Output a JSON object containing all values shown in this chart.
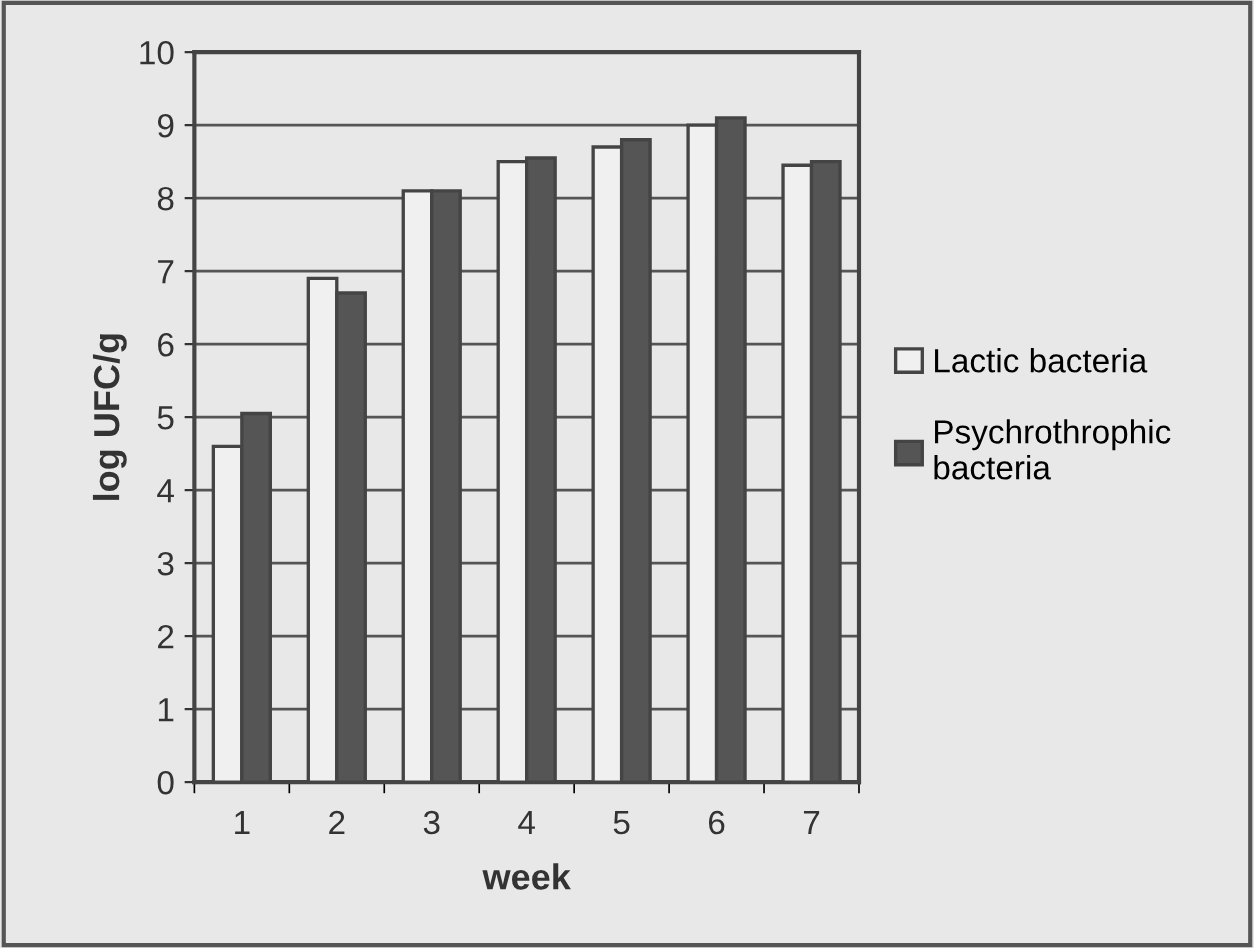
{
  "chart_data": {
    "type": "bar",
    "xlabel": "week",
    "ylabel": "log UFC/g",
    "categories": [
      "1",
      "2",
      "3",
      "4",
      "5",
      "6",
      "7"
    ],
    "series": [
      {
        "name": "Lactic bacteria",
        "color": "#f0f0f0",
        "values": [
          4.6,
          6.9,
          8.1,
          8.5,
          8.7,
          9.0,
          8.45
        ]
      },
      {
        "name": "Psychrothrophic bacteria",
        "color": "#555555",
        "values": [
          5.05,
          6.7,
          8.1,
          8.55,
          8.8,
          9.1,
          8.5
        ]
      }
    ],
    "ylim": [
      0,
      10
    ],
    "yticks": [
      0,
      1,
      2,
      3,
      4,
      5,
      6,
      7,
      8,
      9,
      10
    ],
    "grid": "y",
    "legend": "right"
  }
}
